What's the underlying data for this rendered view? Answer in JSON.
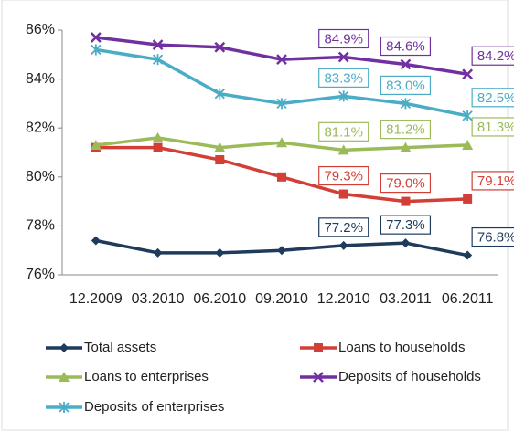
{
  "chart_data": {
    "type": "line",
    "categories": [
      "12.2009",
      "03.2010",
      "06.2010",
      "09.2010",
      "12.2010",
      "03.2011",
      "06.2011"
    ],
    "ylim": [
      76,
      86
    ],
    "yticks": [
      {
        "value": 76,
        "label": "76%"
      },
      {
        "value": 78,
        "label": "78%"
      },
      {
        "value": 80,
        "label": "80%"
      },
      {
        "value": 82,
        "label": "82%"
      },
      {
        "value": 84,
        "label": "84%"
      },
      {
        "value": 86,
        "label": "86%"
      }
    ],
    "grid": false,
    "series": [
      {
        "name": "Total assets",
        "color": "#1f3b5c",
        "marker": "diamond",
        "values": [
          77.4,
          76.9,
          76.9,
          77.0,
          77.2,
          77.3,
          76.8
        ],
        "value_labels": [
          null,
          null,
          null,
          null,
          "77.2%",
          "77.3%",
          "76.8%"
        ]
      },
      {
        "name": "Loans to households",
        "color": "#d23f36",
        "marker": "square",
        "values": [
          81.2,
          81.2,
          80.7,
          80.0,
          79.3,
          79.0,
          79.1
        ],
        "value_labels": [
          null,
          null,
          null,
          null,
          "79.3%",
          "79.0%",
          "79.1%"
        ]
      },
      {
        "name": "Loans to enterprises",
        "color": "#9bbb59",
        "marker": "triangle",
        "values": [
          81.3,
          81.6,
          81.2,
          81.4,
          81.1,
          81.2,
          81.3
        ],
        "value_labels": [
          null,
          null,
          null,
          null,
          "81.1%",
          "81.2%",
          "81.3%"
        ]
      },
      {
        "name": "Deposits of households",
        "color": "#7030a0",
        "marker": "x",
        "values": [
          85.7,
          85.4,
          85.3,
          84.8,
          84.9,
          84.6,
          84.2
        ],
        "value_labels": [
          null,
          null,
          null,
          null,
          "84.9%",
          "84.6%",
          "84.2%"
        ]
      },
      {
        "name": "Deposits of enterprises",
        "color": "#4bacc6",
        "marker": "star",
        "values": [
          85.2,
          84.8,
          83.4,
          83.0,
          83.3,
          83.0,
          82.5
        ],
        "value_labels": [
          null,
          null,
          null,
          null,
          "83.3%",
          "83.0%",
          "82.5%"
        ]
      }
    ]
  }
}
